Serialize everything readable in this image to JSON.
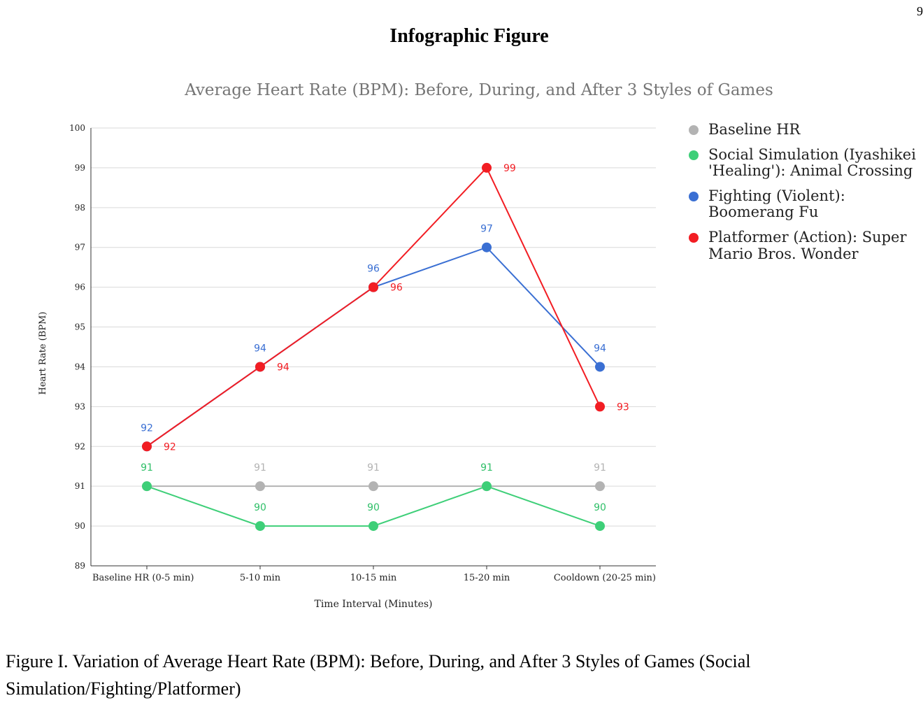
{
  "page": {
    "heading": "Infographic Figure",
    "caption": "Figure I. Variation of Average Heart Rate (BPM): Before, During, and After 3 Styles of Games (Social Simulation/Fighting/Platformer)",
    "edge_mark": "9"
  },
  "chart_data": {
    "type": "line",
    "title": "Average Heart Rate (BPM): Before, During, and After 3 Styles of Games",
    "xlabel": "Time Interval (Minutes)",
    "ylabel": "Heart Rate (BPM)",
    "ylim": [
      89,
      100
    ],
    "yticks": [
      89,
      90,
      91,
      92,
      93,
      94,
      95,
      96,
      97,
      98,
      99,
      100
    ],
    "grid": true,
    "legend_position": "right",
    "categories": [
      "Baseline HR (0-5 min)",
      "5-10 min",
      "10-15 min",
      "15-20 min",
      "Cooldown (20-25 min)"
    ],
    "series": [
      {
        "name": "Baseline HR",
        "color": "#b3b3b3",
        "label_color": "#b3b3b3",
        "values": [
          91,
          91,
          91,
          91,
          91
        ],
        "label_placement": [
          "none",
          "above",
          "above",
          "none",
          "above"
        ]
      },
      {
        "name": "Social Simulation (Iyashikei 'Healing'): Animal Crossing",
        "color": "#3ecf78",
        "label_color": "#2fbf68",
        "values": [
          91,
          90,
          90,
          91,
          90
        ],
        "label_placement": [
          "above",
          "above",
          "above",
          "above",
          "above"
        ]
      },
      {
        "name": "Fighting (Violent): Boomerang Fu",
        "color": "#3a6fd3",
        "label_color": "#3a6fd3",
        "values": [
          92,
          94,
          96,
          97,
          94
        ],
        "label_placement": [
          "above",
          "above",
          "above",
          "above",
          "above"
        ]
      },
      {
        "name": "Platformer (Action): Super Mario Bros. Wonder",
        "color": "#f21d23",
        "label_color": "#f21d23",
        "values": [
          92,
          94,
          96,
          99,
          93
        ],
        "label_placement": [
          "right",
          "right",
          "right",
          "right",
          "right"
        ]
      }
    ]
  }
}
